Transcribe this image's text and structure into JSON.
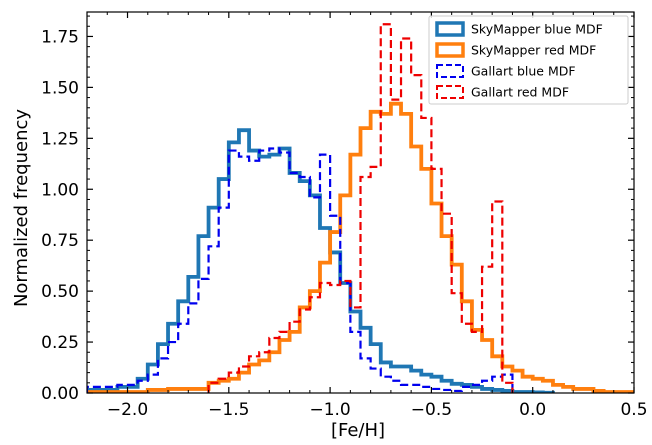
{
  "chart_data": {
    "type": "histogram",
    "xlabel": "[Fe/H]",
    "ylabel": "Normalized frequency",
    "xlim": [
      -2.2,
      0.5
    ],
    "ylim": [
      0,
      1.87
    ],
    "grid": false,
    "legend_position": "top-right",
    "xticks": [
      -2.0,
      -1.5,
      -1.0,
      -0.5,
      0.0,
      0.5
    ],
    "xtick_labels": [
      "−2.0",
      "−1.5",
      "−1.0",
      "−0.5",
      "0.0",
      "0.5"
    ],
    "yticks": [
      0,
      0.25,
      0.5,
      0.75,
      1.0,
      1.25,
      1.5,
      1.75
    ],
    "ytick_labels": [
      "0.00",
      "0.25",
      "0.50",
      "0.75",
      "1.00",
      "1.25",
      "1.50",
      "1.75"
    ],
    "series": [
      {
        "name": "SkyMapper blue MDF",
        "color": "#1f77b4",
        "linestyle": "solid",
        "bin_edges": [
          -2.2,
          -2.05,
          -1.95,
          -1.9,
          -1.85,
          -1.8,
          -1.75,
          -1.7,
          -1.65,
          -1.6,
          -1.55,
          -1.5,
          -1.45,
          -1.4,
          -1.35,
          -1.3,
          -1.25,
          -1.2,
          -1.15,
          -1.1,
          -1.05,
          -1.0,
          -0.95,
          -0.9,
          -0.85,
          -0.8,
          -0.75,
          -0.7,
          -0.6,
          -0.55,
          -0.5,
          -0.45,
          -0.4,
          -0.35,
          -0.3,
          -0.25,
          -0.2,
          -0.15,
          -0.1,
          0.0,
          0.05,
          0.1
        ],
        "values": [
          0.015,
          0.03,
          0.07,
          0.14,
          0.24,
          0.34,
          0.45,
          0.57,
          0.77,
          0.91,
          1.05,
          1.23,
          1.29,
          1.19,
          1.16,
          1.17,
          1.2,
          1.08,
          1.04,
          0.97,
          0.81,
          0.69,
          0.54,
          0.4,
          0.32,
          0.24,
          0.15,
          0.13,
          0.11,
          0.09,
          0.08,
          0.06,
          0.045,
          0.04,
          0.03,
          0.02,
          0.015,
          0.01,
          0.005,
          0.003,
          0.001
        ]
      },
      {
        "name": "SkyMapper red MDF",
        "color": "#ff7f0e",
        "linestyle": "solid",
        "bin_edges": [
          -2.2,
          -1.9,
          -1.8,
          -1.6,
          -1.55,
          -1.5,
          -1.45,
          -1.4,
          -1.35,
          -1.3,
          -1.25,
          -1.2,
          -1.15,
          -1.1,
          -1.05,
          -1.0,
          -0.95,
          -0.9,
          -0.85,
          -0.8,
          -0.75,
          -0.7,
          -0.65,
          -0.6,
          -0.55,
          -0.5,
          -0.45,
          -0.4,
          -0.35,
          -0.3,
          -0.25,
          -0.2,
          -0.15,
          -0.1,
          -0.05,
          0.0,
          0.05,
          0.1,
          0.15,
          0.2,
          0.25,
          0.3,
          0.35,
          0.5
        ],
        "values": [
          0.005,
          0.015,
          0.02,
          0.05,
          0.06,
          0.07,
          0.1,
          0.14,
          0.16,
          0.2,
          0.26,
          0.3,
          0.42,
          0.5,
          0.64,
          0.79,
          0.97,
          1.17,
          1.3,
          1.38,
          1.37,
          1.42,
          1.37,
          1.21,
          1.1,
          0.93,
          0.77,
          0.63,
          0.45,
          0.31,
          0.26,
          0.18,
          0.13,
          0.11,
          0.08,
          0.07,
          0.06,
          0.04,
          0.03,
          0.02,
          0.02,
          0.01,
          0.005
        ]
      },
      {
        "name": "Gallart blue MDF",
        "color": "#0000ee",
        "linestyle": "dashed",
        "bin_edges": [
          -2.2,
          -2.05,
          -1.95,
          -1.9,
          -1.85,
          -1.8,
          -1.75,
          -1.7,
          -1.65,
          -1.6,
          -1.55,
          -1.5,
          -1.45,
          -1.4,
          -1.35,
          -1.3,
          -1.25,
          -1.2,
          -1.15,
          -1.1,
          -1.05,
          -1.0,
          -0.95,
          -0.9,
          -0.85,
          -0.8,
          -0.75,
          -0.7,
          -0.65,
          -0.6,
          -0.55,
          -0.5,
          -0.45,
          -0.4,
          -0.35,
          -0.3,
          -0.25,
          -0.2,
          -0.15,
          -0.1
        ],
        "values": [
          0.03,
          0.04,
          0.06,
          0.09,
          0.17,
          0.25,
          0.34,
          0.44,
          0.56,
          0.72,
          0.91,
          1.19,
          1.16,
          1.14,
          1.19,
          1.2,
          1.18,
          1.08,
          1.06,
          0.96,
          1.17,
          0.87,
          0.54,
          0.3,
          0.17,
          0.12,
          0.08,
          0.06,
          0.04,
          0.04,
          0.03,
          0.02,
          0.015,
          0.01,
          0.03,
          0.04,
          0.06,
          0.08,
          0.09
        ]
      },
      {
        "name": "Gallart red MDF",
        "color": "#ee0000",
        "linestyle": "dashed",
        "bin_edges": [
          -1.6,
          -1.55,
          -1.5,
          -1.45,
          -1.4,
          -1.35,
          -1.3,
          -1.25,
          -1.2,
          -1.15,
          -1.1,
          -1.05,
          -1.0,
          -0.95,
          -0.9,
          -0.85,
          -0.8,
          -0.75,
          -0.7,
          -0.65,
          -0.6,
          -0.55,
          -0.5,
          -0.45,
          -0.4,
          -0.35,
          -0.3,
          -0.25,
          -0.2,
          -0.15,
          -0.1
        ],
        "values": [
          0.05,
          0.07,
          0.1,
          0.13,
          0.18,
          0.2,
          0.27,
          0.3,
          0.35,
          0.41,
          0.47,
          0.54,
          0.53,
          0.55,
          0.42,
          1.06,
          1.11,
          1.81,
          1.44,
          1.74,
          1.56,
          1.35,
          1.1,
          0.88,
          0.49,
          0.34,
          0.3,
          0.62,
          0.94,
          0.05
        ]
      }
    ]
  }
}
